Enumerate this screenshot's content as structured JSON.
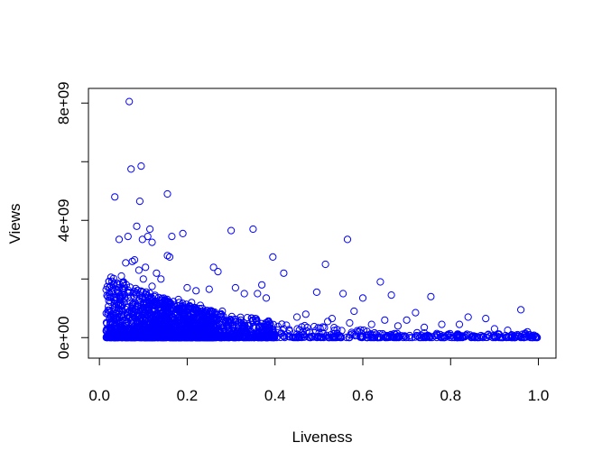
{
  "chart_data": {
    "type": "scatter",
    "title": "",
    "xlabel": "Liveness",
    "ylabel": "Views",
    "xlim": [
      -0.025,
      1.04
    ],
    "ylim": [
      -700000000,
      8500000000
    ],
    "x_ticks": [
      0.0,
      0.2,
      0.4,
      0.6,
      0.8,
      1.0
    ],
    "x_tick_labels": [
      "0.0",
      "0.2",
      "0.4",
      "0.6",
      "0.8",
      "1.0"
    ],
    "y_ticks": [
      0,
      2000000000,
      4000000000,
      6000000000,
      8000000000
    ],
    "y_tick_labels": [
      "0e+00",
      "",
      "4e+09",
      "",
      "8e+09"
    ],
    "grid": false,
    "legend": "none",
    "marker": "open-circle",
    "point_color": "#0000ff",
    "series": [
      {
        "x": [
          0.068,
          0.095,
          0.072,
          0.035,
          0.155,
          0.092,
          0.115,
          0.085,
          0.35,
          0.3,
          0.19,
          0.565,
          0.045,
          0.065,
          0.165,
          0.12,
          0.098,
          0.11,
          0.155,
          0.16,
          0.075,
          0.06,
          0.08,
          0.105,
          0.395,
          0.26,
          0.27,
          0.42,
          0.515,
          0.64,
          0.665,
          0.555,
          0.495,
          0.755,
          0.6,
          0.58,
          0.84,
          0.88,
          0.96,
          0.7,
          0.72,
          0.78,
          0.65,
          0.31,
          0.33,
          0.25,
          0.2,
          0.22,
          0.14,
          0.13,
          0.05,
          0.045,
          0.055,
          0.09,
          0.1,
          0.12,
          0.18,
          0.21,
          0.23,
          0.28,
          0.36,
          0.37,
          0.38,
          0.45,
          0.47,
          0.52,
          0.53,
          0.57,
          0.62,
          0.68,
          0.74,
          0.82,
          0.9,
          0.93,
          0.97,
          0.98,
          0.99,
          0.995,
          0.985,
          0.975
        ],
        "y": [
          8050000000,
          5850000000,
          5750000000,
          4800000000,
          4900000000,
          4650000000,
          3700000000,
          3800000000,
          3700000000,
          3650000000,
          3550000000,
          3350000000,
          3350000000,
          3450000000,
          3450000000,
          3250000000,
          3350000000,
          3450000000,
          2800000000,
          2750000000,
          2600000000,
          2550000000,
          2650000000,
          2400000000,
          2750000000,
          2400000000,
          2250000000,
          2200000000,
          2500000000,
          1900000000,
          1450000000,
          1500000000,
          1550000000,
          1400000000,
          1350000000,
          900000000,
          700000000,
          650000000,
          950000000,
          600000000,
          850000000,
          450000000,
          600000000,
          1700000000,
          1500000000,
          1650000000,
          1700000000,
          1600000000,
          2000000000,
          2200000000,
          2100000000,
          1700000000,
          1900000000,
          2300000000,
          2000000000,
          1750000000,
          1300000000,
          1200000000,
          1100000000,
          900000000,
          1500000000,
          1800000000,
          1350000000,
          700000000,
          800000000,
          550000000,
          650000000,
          500000000,
          450000000,
          400000000,
          350000000,
          450000000,
          300000000,
          250000000,
          150000000,
          100000000,
          80000000,
          40000000,
          60000000,
          200000000
        ]
      }
    ]
  }
}
